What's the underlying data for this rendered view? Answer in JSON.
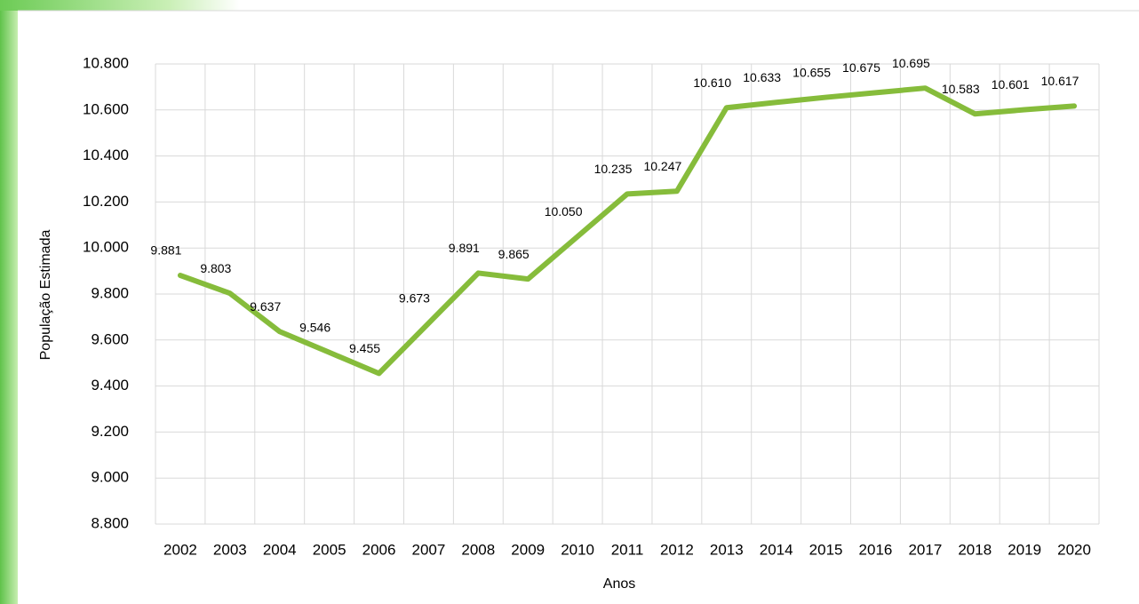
{
  "chart_data": {
    "type": "line",
    "x_label": "Anos",
    "y_label": "População Estimada",
    "categories": [
      "2002",
      "2003",
      "2004",
      "2005",
      "2006",
      "2007",
      "2008",
      "2009",
      "2010",
      "2011",
      "2012",
      "2013",
      "2014",
      "2015",
      "2016",
      "2017",
      "2018",
      "2019",
      "2020"
    ],
    "series": [
      {
        "name": "População Estimada",
        "color": "#86bc3b",
        "values": [
          9881,
          9803,
          9637,
          9546,
          9455,
          9673,
          9891,
          9865,
          10050,
          10235,
          10247,
          10610,
          10633,
          10655,
          10675,
          10695,
          10583,
          10601,
          10617
        ],
        "value_labels": [
          "9.881",
          "9.803",
          "9.637",
          "9.546",
          "9.455",
          "9.673",
          "9.891",
          "9.865",
          "10.050",
          "10.235",
          "10.247",
          "10.610",
          "10.633",
          "10.655",
          "10.675",
          "10.695",
          "10.583",
          "10.601",
          "10.617"
        ]
      }
    ],
    "ylim": [
      8800,
      10800
    ],
    "yticks": [
      {
        "value": 8800,
        "label": "8.800"
      },
      {
        "value": 9000,
        "label": "9.000"
      },
      {
        "value": 9200,
        "label": "9.200"
      },
      {
        "value": 9400,
        "label": "9.400"
      },
      {
        "value": 9600,
        "label": "9.600"
      },
      {
        "value": 9800,
        "label": "9.800"
      },
      {
        "value": 10000,
        "label": "10.000"
      },
      {
        "value": 10200,
        "label": "10.200"
      },
      {
        "value": 10400,
        "label": "10.400"
      },
      {
        "value": 10600,
        "label": "10.600"
      },
      {
        "value": 10800,
        "label": "10.800"
      }
    ],
    "grid": true
  }
}
